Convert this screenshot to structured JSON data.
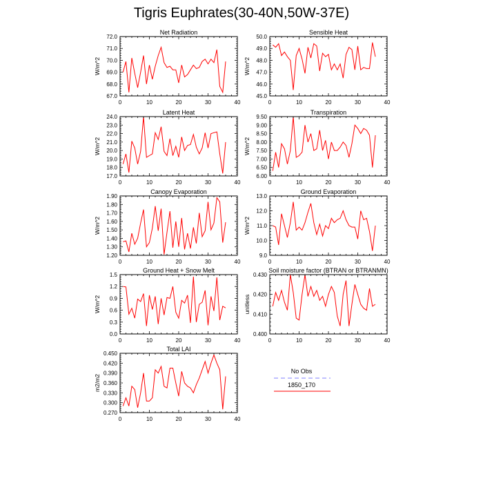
{
  "title": "Tigris Euphrates(30-40N,50W-37E)",
  "colors": {
    "model": "#ff0000",
    "obs": "#9999ff",
    "frame": "#000000"
  },
  "legend": {
    "entries": [
      {
        "label": "No Obs",
        "style": "dashed",
        "color": "#9999ff"
      },
      {
        "label": "1850_170",
        "style": "solid",
        "color": "#ff0000"
      }
    ]
  },
  "chart_data": [
    {
      "type": "line",
      "title": "Net Radiation",
      "ylabel": "W/m^2",
      "xlim": [
        0,
        40
      ],
      "xticks": [
        0,
        10,
        20,
        30,
        40
      ],
      "ylim": [
        67.0,
        72.0
      ],
      "yticks": [
        67.0,
        68.0,
        69.0,
        70.0,
        71.0,
        72.0
      ],
      "ydec": 1,
      "series": [
        {
          "color": "#ff0000",
          "x": [
            1,
            2,
            3,
            4,
            5,
            6,
            7,
            8,
            9,
            10,
            11,
            12,
            13,
            14,
            15,
            16,
            17,
            18,
            19,
            20,
            21,
            22,
            23,
            24,
            25,
            26,
            27,
            28,
            29,
            30,
            31,
            32,
            33,
            34,
            35,
            36
          ],
          "y": [
            69.0,
            69.9,
            67.3,
            70.2,
            68.9,
            67.7,
            69.0,
            70.4,
            68.0,
            69.6,
            68.4,
            69.5,
            70.4,
            71.1,
            69.8,
            69.4,
            69.5,
            69.2,
            69.2,
            68.1,
            69.6,
            68.6,
            68.8,
            69.2,
            69.6,
            69.3,
            69.4,
            69.9,
            70.1,
            69.7,
            70.1,
            69.8,
            70.9,
            67.8,
            67.3,
            69.9
          ]
        }
      ]
    },
    {
      "type": "line",
      "title": "Sensible Heat",
      "ylabel": "W/m^2",
      "xlim": [
        0,
        40
      ],
      "xticks": [
        0,
        10,
        20,
        30,
        40
      ],
      "ylim": [
        45.0,
        50.0
      ],
      "yticks": [
        45.0,
        46.0,
        47.0,
        48.0,
        49.0,
        50.0
      ],
      "ydec": 1,
      "series": [
        {
          "color": "#ff0000",
          "x": [
            1,
            2,
            3,
            4,
            5,
            6,
            7,
            8,
            9,
            10,
            11,
            12,
            13,
            14,
            15,
            16,
            17,
            18,
            19,
            20,
            21,
            22,
            23,
            24,
            25,
            26,
            27,
            28,
            29,
            30,
            31,
            32,
            33,
            34,
            35,
            36
          ],
          "y": [
            49.3,
            49.1,
            49.4,
            48.4,
            48.7,
            48.3,
            48.0,
            45.5,
            48.4,
            49.0,
            48.1,
            46.9,
            49.1,
            48.2,
            49.4,
            49.2,
            47.1,
            48.6,
            48.3,
            48.5,
            47.2,
            47.7,
            47.2,
            47.7,
            46.5,
            48.5,
            49.1,
            48.9,
            47.2,
            49.2,
            47.2,
            47.4,
            47.3,
            47.3,
            49.5,
            48.3
          ]
        }
      ]
    },
    {
      "type": "line",
      "title": "Latent Heat",
      "ylabel": "W/m^2",
      "xlim": [
        0,
        40
      ],
      "xticks": [
        0,
        10,
        20,
        30,
        40
      ],
      "ylim": [
        17.0,
        24.0
      ],
      "yticks": [
        17.0,
        18.0,
        19.0,
        20.0,
        21.0,
        22.0,
        23.0,
        24.0
      ],
      "ydec": 1,
      "series": [
        {
          "color": "#ff0000",
          "x": [
            1,
            2,
            3,
            4,
            5,
            6,
            7,
            8,
            9,
            10,
            11,
            12,
            13,
            14,
            15,
            16,
            17,
            18,
            19,
            20,
            21,
            22,
            23,
            24,
            25,
            26,
            27,
            28,
            29,
            30,
            31,
            32,
            33,
            34,
            35,
            36
          ],
          "y": [
            18.4,
            19.6,
            17.4,
            21.1,
            20.3,
            18.4,
            19.9,
            24.0,
            19.2,
            19.4,
            19.6,
            22.1,
            21.3,
            22.8,
            19.9,
            19.4,
            21.4,
            19.4,
            20.5,
            19.2,
            21.6,
            20.0,
            20.6,
            20.7,
            21.9,
            20.4,
            19.6,
            20.3,
            22.1,
            20.3,
            22.0,
            22.1,
            22.2,
            19.6,
            17.3,
            21.0
          ]
        }
      ]
    },
    {
      "type": "line",
      "title": "Transpiration",
      "ylabel": "W/m^2",
      "xlim": [
        0,
        40
      ],
      "xticks": [
        0,
        10,
        20,
        30,
        40
      ],
      "ylim": [
        6.0,
        9.5
      ],
      "yticks": [
        6.0,
        6.5,
        7.0,
        7.5,
        8.0,
        8.5,
        9.0,
        9.5
      ],
      "ydec": 2,
      "series": [
        {
          "color": "#ff0000",
          "x": [
            1,
            2,
            3,
            4,
            5,
            6,
            7,
            8,
            9,
            10,
            11,
            12,
            13,
            14,
            15,
            16,
            17,
            18,
            19,
            20,
            21,
            22,
            23,
            24,
            25,
            26,
            27,
            28,
            29,
            30,
            31,
            32,
            33,
            34,
            35,
            36
          ],
          "y": [
            6.3,
            7.4,
            6.5,
            7.9,
            7.6,
            6.7,
            7.5,
            9.5,
            7.1,
            7.2,
            7.4,
            9.0,
            8.0,
            8.5,
            7.5,
            7.6,
            8.7,
            7.5,
            8.1,
            7.0,
            8.0,
            7.5,
            7.5,
            7.7,
            8.0,
            7.8,
            7.1,
            7.9,
            9.0,
            8.8,
            8.5,
            8.8,
            8.7,
            8.4,
            6.5,
            8.4
          ]
        }
      ]
    },
    {
      "type": "line",
      "title": "Canopy Evaporation",
      "ylabel": "W/m^2",
      "xlim": [
        0,
        40
      ],
      "xticks": [
        0,
        10,
        20,
        30,
        40
      ],
      "ylim": [
        1.2,
        1.9
      ],
      "yticks": [
        1.2,
        1.3,
        1.4,
        1.5,
        1.6,
        1.7,
        1.8,
        1.9
      ],
      "ydec": 2,
      "series": [
        {
          "color": "#ff0000",
          "x": [
            1,
            2,
            3,
            4,
            5,
            6,
            7,
            8,
            9,
            10,
            11,
            12,
            13,
            14,
            15,
            16,
            17,
            18,
            19,
            20,
            21,
            22,
            23,
            24,
            25,
            26,
            27,
            28,
            29,
            30,
            31,
            32,
            33,
            34,
            35,
            36
          ],
          "y": [
            1.36,
            1.37,
            1.24,
            1.46,
            1.33,
            1.4,
            1.58,
            1.74,
            1.3,
            1.35,
            1.52,
            1.78,
            1.49,
            1.75,
            1.21,
            1.47,
            1.72,
            1.29,
            1.6,
            1.3,
            1.64,
            1.27,
            1.46,
            1.28,
            1.53,
            1.34,
            1.7,
            1.42,
            1.49,
            1.83,
            1.5,
            1.58,
            1.88,
            1.83,
            1.35,
            1.59
          ]
        }
      ]
    },
    {
      "type": "line",
      "title": "Ground Evaporation",
      "ylabel": "W/m^2",
      "xlim": [
        0,
        40
      ],
      "xticks": [
        0,
        10,
        20,
        30,
        40
      ],
      "ylim": [
        9.0,
        13.0
      ],
      "yticks": [
        9.0,
        10.0,
        11.0,
        12.0,
        13.0
      ],
      "ydec": 1,
      "series": [
        {
          "color": "#ff0000",
          "x": [
            1,
            2,
            3,
            4,
            5,
            6,
            7,
            8,
            9,
            10,
            11,
            12,
            13,
            14,
            15,
            16,
            17,
            18,
            19,
            20,
            21,
            22,
            23,
            24,
            25,
            26,
            27,
            28,
            29,
            30,
            31,
            32,
            33,
            34,
            35,
            36
          ],
          "y": [
            11.0,
            10.9,
            9.7,
            11.8,
            11.0,
            10.2,
            11.2,
            12.6,
            10.7,
            10.9,
            10.7,
            11.2,
            11.9,
            12.5,
            11.2,
            10.4,
            11.1,
            10.3,
            11.0,
            10.8,
            11.5,
            11.2,
            11.4,
            11.5,
            12.0,
            11.4,
            11.0,
            10.9,
            10.9,
            10.1,
            12.0,
            11.4,
            11.5,
            10.6,
            9.3,
            11.0
          ]
        }
      ]
    },
    {
      "type": "line",
      "title": "Ground Heat + Snow Melt",
      "ylabel": "W/m^2",
      "xlim": [
        0,
        40
      ],
      "xticks": [
        0,
        10,
        20,
        30,
        40
      ],
      "ylim": [
        0.0,
        1.5
      ],
      "yticks": [
        0.0,
        0.3,
        0.6,
        0.9,
        1.2,
        1.5
      ],
      "ydec": 1,
      "series": [
        {
          "color": "#ff0000",
          "x": [
            1,
            2,
            3,
            4,
            5,
            6,
            7,
            8,
            9,
            10,
            11,
            12,
            13,
            14,
            15,
            16,
            17,
            18,
            19,
            20,
            21,
            22,
            23,
            24,
            25,
            26,
            27,
            28,
            29,
            30,
            31,
            32,
            33,
            34,
            35,
            36
          ],
          "y": [
            1.2,
            1.19,
            0.5,
            0.65,
            0.4,
            0.88,
            0.82,
            1.02,
            0.2,
            0.98,
            0.62,
            0.95,
            0.25,
            0.9,
            0.48,
            0.92,
            0.9,
            1.2,
            0.55,
            0.4,
            0.85,
            0.78,
            0.98,
            0.28,
            1.45,
            0.3,
            0.75,
            0.8,
            1.1,
            0.22,
            0.95,
            0.58,
            1.43,
            0.35,
            0.7,
            0.66
          ]
        }
      ]
    },
    {
      "type": "line",
      "title": "Soil moisture factor (BTRAN or BTRANMN)",
      "ylabel": "unitless",
      "xlim": [
        0,
        40
      ],
      "xticks": [
        0,
        10,
        20,
        30,
        40
      ],
      "ylim": [
        0.4,
        0.43
      ],
      "yticks": [
        0.4,
        0.41,
        0.42,
        0.43
      ],
      "ydec": 3,
      "series": [
        {
          "color": "#ff0000",
          "x": [
            1,
            2,
            3,
            4,
            5,
            6,
            7,
            8,
            9,
            10,
            11,
            12,
            13,
            14,
            15,
            16,
            17,
            18,
            19,
            20,
            21,
            22,
            23,
            24,
            25,
            26,
            27,
            28,
            29,
            30,
            31,
            32,
            33,
            34,
            35,
            36
          ],
          "y": [
            0.414,
            0.421,
            0.417,
            0.422,
            0.416,
            0.412,
            0.43,
            0.421,
            0.408,
            0.407,
            0.42,
            0.43,
            0.419,
            0.424,
            0.419,
            0.422,
            0.417,
            0.419,
            0.414,
            0.42,
            0.424,
            0.421,
            0.409,
            0.404,
            0.42,
            0.427,
            0.404,
            0.415,
            0.425,
            0.42,
            0.415,
            0.413,
            0.412,
            0.423,
            0.414,
            0.415
          ]
        }
      ]
    },
    {
      "type": "line",
      "title": "Total LAI",
      "ylabel": "m2/m2",
      "xlim": [
        0,
        40
      ],
      "xticks": [
        0,
        10,
        20,
        30,
        40
      ],
      "ylim": [
        0.27,
        0.45
      ],
      "yticks": [
        0.27,
        0.3,
        0.33,
        0.36,
        0.39,
        0.42,
        0.45
      ],
      "ydec": 3,
      "series": [
        {
          "color": "#ff0000",
          "x": [
            1,
            2,
            3,
            4,
            5,
            6,
            7,
            8,
            9,
            10,
            11,
            12,
            13,
            14,
            15,
            16,
            17,
            18,
            19,
            20,
            21,
            22,
            23,
            24,
            25,
            26,
            27,
            28,
            29,
            30,
            31,
            32,
            33,
            34,
            35,
            36
          ],
          "y": [
            0.29,
            0.315,
            0.29,
            0.35,
            0.34,
            0.285,
            0.33,
            0.39,
            0.305,
            0.305,
            0.315,
            0.4,
            0.39,
            0.41,
            0.35,
            0.345,
            0.405,
            0.405,
            0.36,
            0.32,
            0.395,
            0.36,
            0.35,
            0.345,
            0.33,
            0.355,
            0.375,
            0.4,
            0.425,
            0.39,
            0.42,
            0.445,
            0.42,
            0.4,
            0.28,
            0.38
          ]
        }
      ]
    }
  ]
}
